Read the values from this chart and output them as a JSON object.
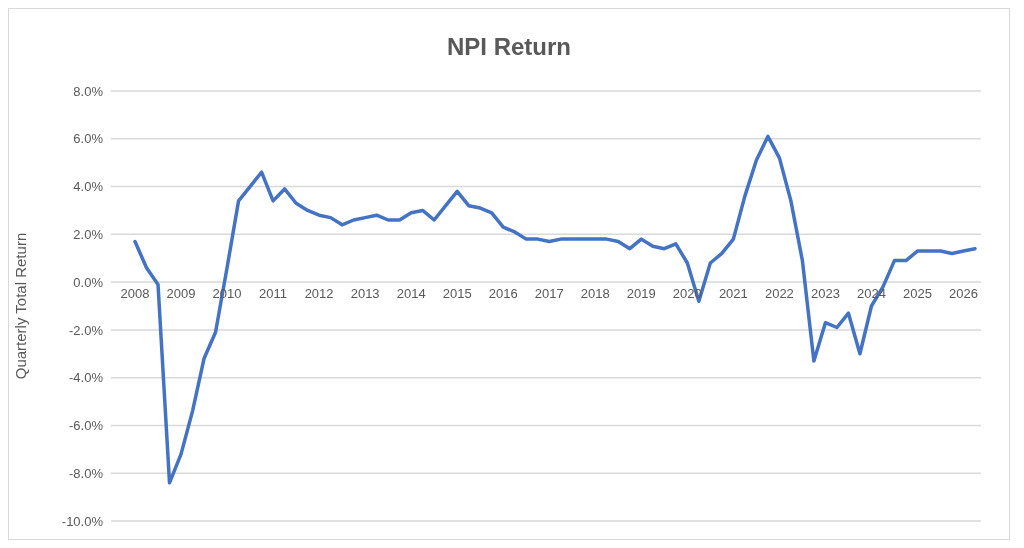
{
  "chart_data": {
    "type": "line",
    "title": "NPI Return",
    "ylabel": "Quarterly Total Return",
    "categories": [
      "2008",
      null,
      null,
      null,
      "2009",
      null,
      null,
      null,
      "2010",
      null,
      null,
      null,
      "2011",
      null,
      null,
      null,
      "2012",
      null,
      null,
      null,
      "2013",
      null,
      null,
      null,
      "2014",
      null,
      null,
      null,
      "2015",
      null,
      null,
      null,
      "2016",
      null,
      null,
      null,
      "2017",
      null,
      null,
      null,
      "2018",
      null,
      null,
      null,
      "2019",
      null,
      null,
      null,
      "2020",
      null,
      null,
      null,
      "2021",
      null,
      null,
      null,
      "2022",
      null,
      null,
      null,
      "2023",
      null,
      null,
      null,
      "2024",
      null,
      null,
      null,
      "2025",
      null,
      null,
      null,
      "2026",
      null
    ],
    "series": [
      {
        "color": "#4472c4",
        "values": [
          1.7,
          0.6,
          -0.1,
          -8.4,
          -7.2,
          -5.4,
          -3.2,
          -2.1,
          0.6,
          3.4,
          4.0,
          4.6,
          3.4,
          3.9,
          3.3,
          3.0,
          2.8,
          2.7,
          2.4,
          2.6,
          2.7,
          2.8,
          2.6,
          2.6,
          2.9,
          3.0,
          2.6,
          3.2,
          3.8,
          3.2,
          3.1,
          2.9,
          2.3,
          2.1,
          1.8,
          1.8,
          1.7,
          1.8,
          1.8,
          1.8,
          1.8,
          1.8,
          1.7,
          1.4,
          1.8,
          1.5,
          1.4,
          1.6,
          0.8,
          -0.8,
          0.8,
          1.2,
          1.8,
          3.6,
          5.1,
          6.1,
          5.2,
          3.4,
          0.9,
          -3.3,
          -1.7,
          -1.9,
          -1.3,
          -3.0,
          -1.0,
          -0.2,
          0.9,
          0.9,
          1.3,
          1.3,
          1.3,
          1.2,
          1.3,
          1.4
        ]
      }
    ],
    "ylim": [
      -10,
      8
    ],
    "yticks": [
      {
        "value": -10,
        "label": "-10.0%"
      },
      {
        "value": -8,
        "label": "-8.0%"
      },
      {
        "value": -6,
        "label": "-6.0%"
      },
      {
        "value": -4,
        "label": "-4.0%"
      },
      {
        "value": -2,
        "label": "-2.0%"
      },
      {
        "value": 0,
        "label": "0.0%"
      },
      {
        "value": 2,
        "label": "2.0%"
      },
      {
        "value": 4,
        "label": "4.0%"
      },
      {
        "value": 6,
        "label": "6.0%"
      },
      {
        "value": 8,
        "label": "8.0%"
      }
    ],
    "grid": "y",
    "marker": "none",
    "line_style": "solid"
  }
}
